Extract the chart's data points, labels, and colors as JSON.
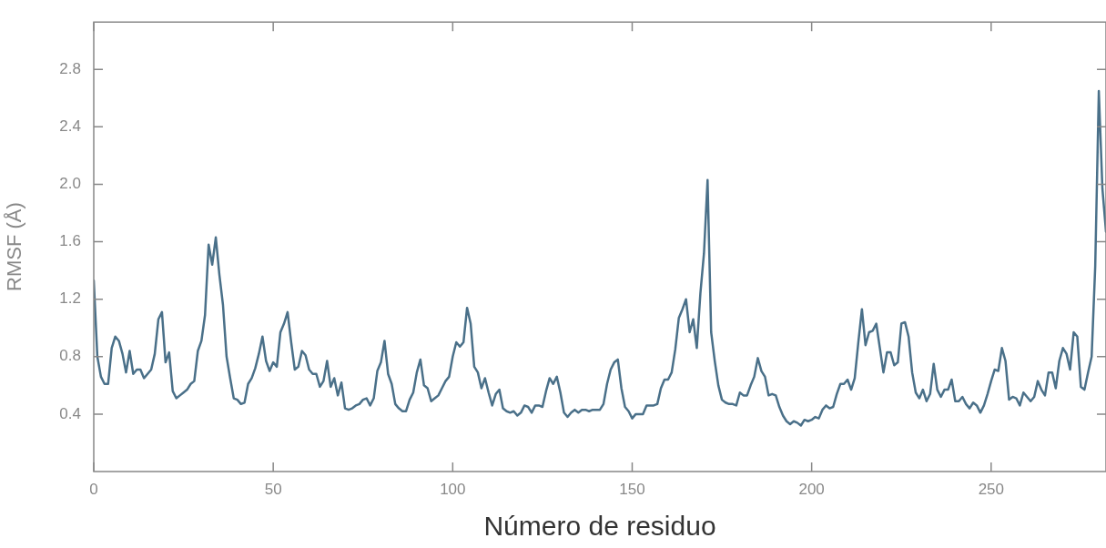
{
  "chart_data": {
    "type": "line",
    "xlabel": "Número de residuo",
    "ylabel": "RMSF (Å)",
    "xlim": [
      0,
      282
    ],
    "ylim": [
      0,
      3.13
    ],
    "xticks": [
      0,
      50,
      100,
      150,
      200,
      250
    ],
    "yticks": [
      0.4,
      0.8,
      1.2,
      1.6,
      {
        "value": 2,
        "label": "2.0"
      },
      2.4,
      2.8
    ],
    "grid": false,
    "marker": "none",
    "line_style": "solid",
    "series": [
      {
        "color": "#4a7089",
        "x": [
          0,
          1,
          2,
          3,
          4,
          5,
          6,
          7,
          8,
          9,
          10,
          11,
          12,
          13,
          14,
          15,
          16,
          17,
          18,
          19,
          20,
          21,
          22,
          23,
          24,
          25,
          26,
          27,
          28,
          29,
          30,
          31,
          32,
          33,
          34,
          35,
          36,
          37,
          38,
          39,
          40,
          41,
          42,
          43,
          44,
          45,
          46,
          47,
          48,
          49,
          50,
          51,
          52,
          53,
          54,
          55,
          56,
          57,
          58,
          59,
          60,
          61,
          62,
          63,
          64,
          65,
          66,
          67,
          68,
          69,
          70,
          71,
          72,
          73,
          74,
          75,
          76,
          77,
          78,
          79,
          80,
          81,
          82,
          83,
          84,
          85,
          86,
          87,
          88,
          89,
          90,
          91,
          92,
          93,
          94,
          95,
          96,
          97,
          98,
          99,
          100,
          101,
          102,
          103,
          104,
          105,
          106,
          107,
          108,
          109,
          110,
          111,
          112,
          113,
          114,
          115,
          116,
          117,
          118,
          119,
          120,
          121,
          122,
          123,
          124,
          125,
          126,
          127,
          128,
          129,
          130,
          131,
          132,
          133,
          134,
          135,
          136,
          137,
          138,
          139,
          140,
          141,
          142,
          143,
          144,
          145,
          146,
          147,
          148,
          149,
          150,
          151,
          152,
          153,
          154,
          155,
          156,
          157,
          158,
          159,
          160,
          161,
          162,
          163,
          164,
          165,
          166,
          167,
          168,
          169,
          170,
          171,
          172,
          173,
          174,
          175,
          176,
          177,
          178,
          179,
          180,
          181,
          182,
          183,
          184,
          185,
          186,
          187,
          188,
          189,
          190,
          191,
          192,
          193,
          194,
          195,
          196,
          197,
          198,
          199,
          200,
          201,
          202,
          203,
          204,
          205,
          206,
          207,
          208,
          209,
          210,
          211,
          212,
          213,
          214,
          215,
          216,
          217,
          218,
          219,
          220,
          221,
          222,
          223,
          224,
          225,
          226,
          227,
          228,
          229,
          230,
          231,
          232,
          233,
          234,
          235,
          236,
          237,
          238,
          239,
          240,
          241,
          242,
          243,
          244,
          245,
          246,
          247,
          248,
          249,
          250,
          251,
          252,
          253,
          254,
          255,
          256,
          257,
          258,
          259,
          260,
          261,
          262,
          263,
          264,
          265,
          266,
          267,
          268,
          269,
          270,
          271,
          272,
          273,
          274,
          275,
          276,
          277,
          278,
          279,
          280,
          281,
          282
        ],
        "values": [
          1.33,
          0.8,
          0.66,
          0.61,
          0.61,
          0.86,
          0.94,
          0.91,
          0.82,
          0.69,
          0.84,
          0.68,
          0.71,
          0.71,
          0.65,
          0.68,
          0.71,
          0.82,
          1.06,
          1.11,
          0.76,
          0.83,
          0.56,
          0.51,
          0.53,
          0.55,
          0.57,
          0.61,
          0.63,
          0.84,
          0.91,
          1.09,
          1.58,
          1.44,
          1.63,
          1.37,
          1.16,
          0.8,
          0.65,
          0.51,
          0.5,
          0.47,
          0.48,
          0.61,
          0.65,
          0.72,
          0.82,
          0.94,
          0.77,
          0.7,
          0.76,
          0.73,
          0.97,
          1.03,
          1.11,
          0.9,
          0.71,
          0.73,
          0.84,
          0.81,
          0.71,
          0.68,
          0.68,
          0.59,
          0.63,
          0.77,
          0.59,
          0.65,
          0.53,
          0.62,
          0.44,
          0.43,
          0.44,
          0.46,
          0.47,
          0.5,
          0.51,
          0.46,
          0.51,
          0.7,
          0.76,
          0.91,
          0.68,
          0.61,
          0.47,
          0.44,
          0.42,
          0.42,
          0.5,
          0.55,
          0.69,
          0.78,
          0.6,
          0.58,
          0.49,
          0.51,
          0.53,
          0.58,
          0.63,
          0.66,
          0.8,
          0.9,
          0.87,
          0.9,
          1.14,
          1.03,
          0.73,
          0.69,
          0.58,
          0.65,
          0.55,
          0.46,
          0.54,
          0.57,
          0.44,
          0.42,
          0.41,
          0.42,
          0.39,
          0.41,
          0.46,
          0.45,
          0.41,
          0.46,
          0.46,
          0.45,
          0.56,
          0.65,
          0.61,
          0.66,
          0.55,
          0.41,
          0.38,
          0.41,
          0.43,
          0.41,
          0.43,
          0.43,
          0.42,
          0.43,
          0.43,
          0.43,
          0.47,
          0.61,
          0.71,
          0.76,
          0.78,
          0.58,
          0.45,
          0.42,
          0.37,
          0.4,
          0.4,
          0.4,
          0.46,
          0.46,
          0.46,
          0.47,
          0.58,
          0.64,
          0.64,
          0.69,
          0.85,
          1.07,
          1.13,
          1.2,
          0.97,
          1.06,
          0.86,
          1.24,
          1.52,
          2.03,
          0.97,
          0.77,
          0.6,
          0.5,
          0.48,
          0.47,
          0.47,
          0.46,
          0.55,
          0.53,
          0.53,
          0.6,
          0.66,
          0.79,
          0.7,
          0.66,
          0.53,
          0.54,
          0.53,
          0.45,
          0.39,
          0.35,
          0.33,
          0.35,
          0.34,
          0.32,
          0.36,
          0.35,
          0.36,
          0.38,
          0.37,
          0.43,
          0.46,
          0.44,
          0.45,
          0.54,
          0.61,
          0.61,
          0.64,
          0.57,
          0.65,
          0.9,
          1.13,
          0.88,
          0.97,
          0.98,
          1.03,
          0.86,
          0.69,
          0.83,
          0.83,
          0.74,
          0.76,
          1.03,
          1.04,
          0.94,
          0.69,
          0.55,
          0.51,
          0.57,
          0.49,
          0.54,
          0.75,
          0.57,
          0.52,
          0.57,
          0.57,
          0.64,
          0.49,
          0.49,
          0.52,
          0.47,
          0.44,
          0.48,
          0.46,
          0.41,
          0.46,
          0.54,
          0.63,
          0.71,
          0.7,
          0.86,
          0.77,
          0.5,
          0.52,
          0.51,
          0.46,
          0.55,
          0.52,
          0.49,
          0.52,
          0.63,
          0.57,
          0.53,
          0.69,
          0.69,
          0.58,
          0.77,
          0.86,
          0.82,
          0.71,
          0.97,
          0.94,
          0.59,
          0.57,
          0.69,
          0.8,
          1.43,
          2.65,
          1.97,
          1.67
        ]
      }
    ]
  }
}
